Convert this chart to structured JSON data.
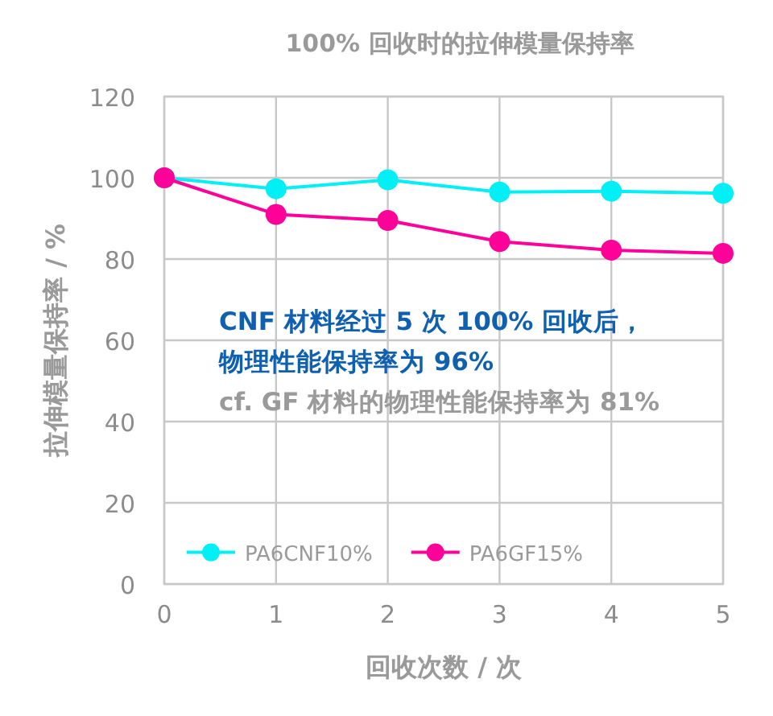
{
  "chart_data": {
    "type": "line",
    "title": "100% 回收时的拉伸模量保持率",
    "xlabel": "回收次数 / 次",
    "ylabel": "拉伸模量保持率 / %",
    "x": [
      0,
      1,
      2,
      3,
      4,
      5
    ],
    "series": [
      {
        "name": "PA6CNF10%",
        "color": "#00f0f5",
        "values": [
          100,
          97.3,
          99.5,
          96.5,
          96.7,
          96.2
        ]
      },
      {
        "name": "PA6GF15%",
        "color": "#ff0099",
        "values": [
          100,
          91,
          89.5,
          84.3,
          82.2,
          81.4
        ]
      }
    ],
    "xlim": [
      0,
      5
    ],
    "xticks": [
      0,
      1,
      2,
      3,
      4,
      5
    ],
    "ylim": [
      0,
      120
    ],
    "yticks": [
      0,
      20,
      40,
      60,
      80,
      100,
      120
    ],
    "grid": true,
    "legend": "bottom left",
    "marker": "circle",
    "line_style": "solid",
    "annotations": [
      "CNF 材料经过 5 次 100% 回收后，",
      "物理性能保持率为 96%",
      "cf. GF 材料的物理性能保持率为 81%"
    ]
  }
}
